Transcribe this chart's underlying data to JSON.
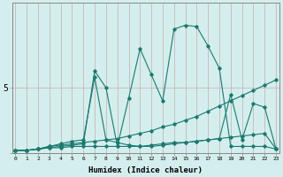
{
  "xlabel": "Humidex (Indice chaleur)",
  "ylabel": "",
  "bg_color": "#d4eeee",
  "line_color": "#1a7a6e",
  "grid_color": "#b8d8d8",
  "x": [
    0,
    1,
    2,
    3,
    4,
    5,
    6,
    7,
    8,
    9,
    10,
    11,
    12,
    13,
    14,
    15,
    16,
    17,
    18,
    19,
    20,
    21,
    22,
    23
  ],
  "line1": [
    0.2,
    0.2,
    0.3,
    0.5,
    0.6,
    0.7,
    0.8,
    0.9,
    1.0,
    1.1,
    1.3,
    1.5,
    1.7,
    2.0,
    2.2,
    2.5,
    2.8,
    3.2,
    3.6,
    4.0,
    4.4,
    4.8,
    5.2,
    5.6
  ],
  "line2": [
    0.2,
    0.2,
    0.3,
    0.4,
    0.5,
    0.6,
    0.7,
    6.3,
    5.0,
    0.5,
    4.2,
    8.0,
    6.0,
    4.0,
    9.5,
    9.8,
    9.7,
    8.2,
    6.5,
    0.5,
    0.5,
    0.5,
    0.5,
    0.3
  ],
  "line3": [
    0.2,
    0.2,
    0.3,
    0.5,
    0.7,
    0.9,
    1.0,
    5.8,
    1.0,
    0.8,
    0.6,
    0.5,
    0.5,
    0.6,
    0.7,
    0.8,
    0.9,
    1.0,
    1.1,
    4.5,
    1.0,
    3.8,
    3.5,
    0.3
  ],
  "line4": [
    0.2,
    0.2,
    0.3,
    0.4,
    0.4,
    0.5,
    0.5,
    0.5,
    0.5,
    0.5,
    0.5,
    0.5,
    0.6,
    0.7,
    0.8,
    0.8,
    0.9,
    1.0,
    1.1,
    1.2,
    1.3,
    1.4,
    1.5,
    0.3
  ],
  "ytick_labels": [
    "",
    "5"
  ],
  "ytick_vals": [
    0,
    5
  ],
  "xlim": [
    -0.3,
    23.3
  ],
  "ylim": [
    0,
    11.5
  ]
}
